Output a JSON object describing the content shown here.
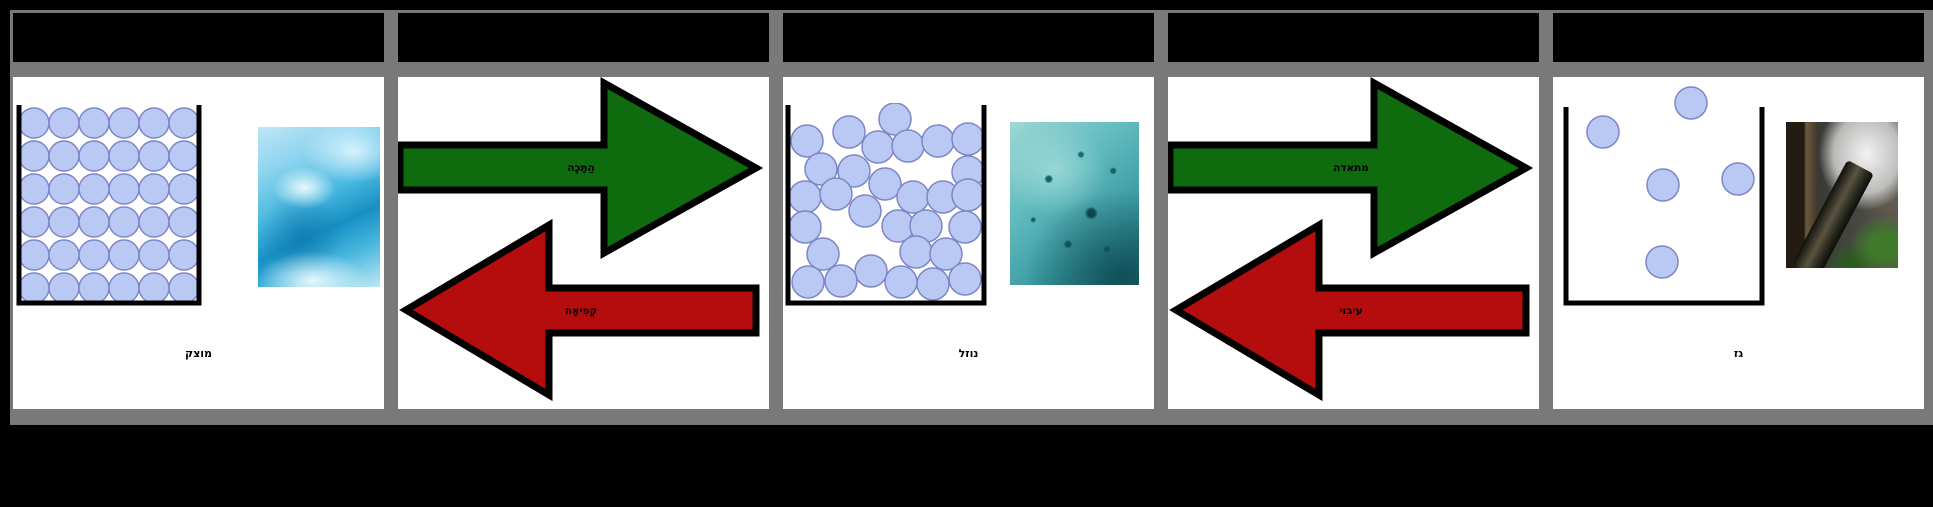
{
  "colors": {
    "background": "#000000",
    "frame_gray": "#797979",
    "panel_white": "#ffffff",
    "header_black": "#000000",
    "arrow_green": "#0e6b0e",
    "arrow_red": "#b50d0d",
    "arrow_outline": "#000000",
    "particle_fill": "#bac9f3",
    "particle_stroke": "#7d86c7",
    "container_stroke": "#000000",
    "label_color": "#000000"
  },
  "panels": [
    {
      "kind": "state",
      "state": "solid",
      "header_text": "",
      "label": "מוצק",
      "photo": "ice-glacier-photo",
      "particles": {
        "r": 15,
        "points": [
          [
            19,
            20
          ],
          [
            49,
            20
          ],
          [
            79,
            20
          ],
          [
            109,
            20
          ],
          [
            139,
            20
          ],
          [
            169,
            20
          ],
          [
            19,
            53
          ],
          [
            49,
            53
          ],
          [
            79,
            53
          ],
          [
            109,
            53
          ],
          [
            139,
            53
          ],
          [
            169,
            53
          ],
          [
            19,
            86
          ],
          [
            49,
            86
          ],
          [
            79,
            86
          ],
          [
            109,
            86
          ],
          [
            139,
            86
          ],
          [
            169,
            86
          ],
          [
            19,
            119
          ],
          [
            49,
            119
          ],
          [
            79,
            119
          ],
          [
            109,
            119
          ],
          [
            139,
            119
          ],
          [
            169,
            119
          ],
          [
            19,
            152
          ],
          [
            49,
            152
          ],
          [
            79,
            152
          ],
          [
            109,
            152
          ],
          [
            139,
            152
          ],
          [
            169,
            152
          ],
          [
            19,
            185
          ],
          [
            49,
            185
          ],
          [
            79,
            185
          ],
          [
            109,
            185
          ],
          [
            139,
            185
          ],
          [
            169,
            185
          ]
        ]
      }
    },
    {
      "kind": "transition",
      "header_text": "",
      "arrows": [
        {
          "direction": "right",
          "color_key": "arrow_green",
          "label": "הַתָּכָה"
        },
        {
          "direction": "left",
          "color_key": "arrow_red",
          "label": "קְפִיאָה"
        }
      ]
    },
    {
      "kind": "state",
      "state": "liquid",
      "header_text": "",
      "label": "נוזל",
      "photo": "water-droplets-photo",
      "particles": {
        "r": 16,
        "points": [
          [
            110,
            16
          ],
          [
            64,
            29
          ],
          [
            22,
            38
          ],
          [
            93,
            44
          ],
          [
            123,
            43
          ],
          [
            153,
            38
          ],
          [
            183,
            36
          ],
          [
            36,
            66
          ],
          [
            69,
            68
          ],
          [
            100,
            81
          ],
          [
            183,
            69
          ],
          [
            20,
            94
          ],
          [
            51,
            91
          ],
          [
            80,
            108
          ],
          [
            128,
            94
          ],
          [
            158,
            94
          ],
          [
            183,
            92
          ],
          [
            20,
            124
          ],
          [
            113,
            123
          ],
          [
            141,
            123
          ],
          [
            180,
            124
          ],
          [
            38,
            151
          ],
          [
            131,
            149
          ],
          [
            161,
            151
          ],
          [
            86,
            168
          ],
          [
            23,
            179
          ],
          [
            56,
            178
          ],
          [
            116,
            179
          ],
          [
            148,
            181
          ],
          [
            180,
            176
          ]
        ]
      }
    },
    {
      "kind": "transition",
      "header_text": "",
      "arrows": [
        {
          "direction": "right",
          "color_key": "arrow_green",
          "label": "מתאדה"
        },
        {
          "direction": "left",
          "color_key": "arrow_red",
          "label": "עיבוי"
        }
      ]
    },
    {
      "kind": "state",
      "state": "gas",
      "header_text": "",
      "label": "גז",
      "photo": "steam-photo",
      "particles": {
        "r": 16,
        "points": [
          [
            128,
            18
          ],
          [
            40,
            47
          ],
          [
            100,
            100
          ],
          [
            175,
            94
          ],
          [
            99,
            177
          ]
        ]
      }
    }
  ]
}
